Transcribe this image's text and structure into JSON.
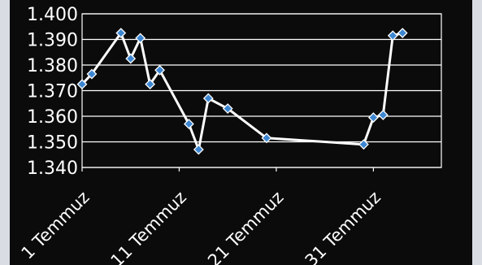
{
  "chart_data": {
    "type": "line",
    "title": "",
    "xlabel": "",
    "ylabel": "",
    "ylim": [
      1.34,
      1.4
    ],
    "yticks": [
      "1.400",
      "1.390",
      "1.380",
      "1.370",
      "1.360",
      "1.350",
      "1.340"
    ],
    "yticks_values": [
      1.4,
      1.39,
      1.38,
      1.37,
      1.36,
      1.35,
      1.34
    ],
    "xlim": [
      1,
      38
    ],
    "xticks": [
      "1 Temmuz",
      "11 Temmuz",
      "21 Temmuz",
      "31 Temmuz"
    ],
    "xticks_values": [
      1,
      11,
      21,
      31
    ],
    "grid": true,
    "series": [
      {
        "x": [
          1,
          2,
          5,
          6,
          7,
          8,
          9,
          12,
          13,
          14,
          16,
          20,
          30,
          31,
          32,
          33,
          34
        ],
        "y": [
          1.3725,
          1.3765,
          1.3925,
          1.3825,
          1.3905,
          1.3725,
          1.378,
          1.357,
          1.347,
          1.367,
          1.363,
          1.3515,
          1.349,
          1.3595,
          1.3605,
          1.3915,
          1.3925
        ]
      }
    ],
    "colors": {
      "line": "#ffffff",
      "marker": "#3d87d2",
      "marker_edge": "#ffffff",
      "grid": "#ffffff",
      "text": "#ffffff",
      "background": "#0b0b0b"
    }
  }
}
